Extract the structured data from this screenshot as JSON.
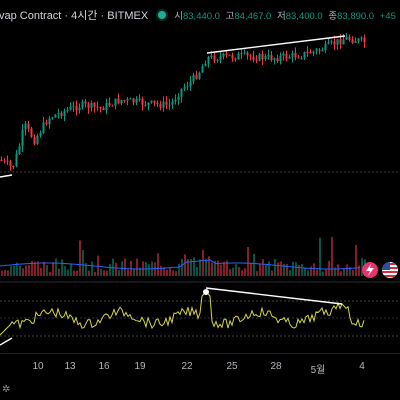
{
  "header": {
    "title": "vap Contract · 4시간 · BITMEX",
    "ohlc": [
      {
        "key": "시",
        "value": "83,440.0"
      },
      {
        "key": "고",
        "value": "84,467.0"
      },
      {
        "key": "저",
        "value": "83,400.0"
      },
      {
        "key": "종",
        "value": "83,890.0"
      },
      {
        "key": "",
        "value": "+45"
      }
    ]
  },
  "xaxis": {
    "ticks": [
      "10",
      "13",
      "16",
      "19",
      "22",
      "25",
      "28",
      "5월",
      "4"
    ]
  },
  "colors": {
    "up": "#089981",
    "down": "#f23645",
    "oscillator": "#d4d44a",
    "trendline": "#ffffff",
    "live": "#22ab94"
  },
  "icons": {
    "live_status": "green-dot-icon",
    "lightning_button": "lightning-icon",
    "flag_button": "us-flag-icon",
    "corner": "snowflake-icon"
  },
  "chart_data": {
    "type": "candlestick",
    "series": [
      {
        "name": "price",
        "panel": "main"
      },
      {
        "name": "volume",
        "panel": "volume"
      },
      {
        "name": "oscillator",
        "panel": "lower"
      }
    ],
    "x": [
      "10",
      "13",
      "16",
      "19",
      "22",
      "25",
      "28",
      "5월",
      "4"
    ],
    "annotations": [
      "trendline-price-top",
      "trendline-oscillator-top",
      "trendline-oscillator-bottom-left",
      "dotted-level-lines"
    ]
  }
}
